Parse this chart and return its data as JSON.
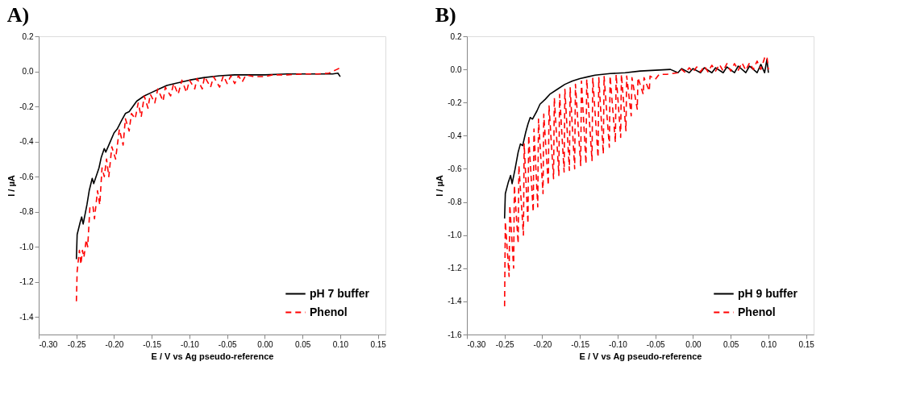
{
  "chart_data": [
    {
      "type": "line",
      "title": "A)",
      "xlabel": "E / V vs Ag pseudo-reference",
      "ylabel": "I / µA",
      "xlim": [
        -0.3,
        0.16
      ],
      "xticks": [
        {
          "value": -0.3,
          "label": "-0.30"
        },
        {
          "value": -0.25,
          "label": "-0.25"
        },
        {
          "value": -0.2,
          "label": "-0.20"
        },
        {
          "value": -0.15,
          "label": "-0.15"
        },
        {
          "value": -0.1,
          "label": "-0.10"
        },
        {
          "value": -0.05,
          "label": "-0.05"
        },
        {
          "value": 0,
          "label": "0.00"
        },
        {
          "value": 0.05,
          "label": "0.05"
        },
        {
          "value": 0.1,
          "label": "0.10"
        },
        {
          "value": 0.15,
          "label": "0.15"
        }
      ],
      "ylim": [
        -1.5,
        0.2
      ],
      "yticks": [
        {
          "value": -1.4,
          "label": "-1.4"
        },
        {
          "value": -1.2,
          "label": "-1.2"
        },
        {
          "value": -1.0,
          "label": "-1.0"
        },
        {
          "value": -0.8,
          "label": "-0.8"
        },
        {
          "value": -0.6,
          "label": "-0.6"
        },
        {
          "value": -0.4,
          "label": "-0.4"
        },
        {
          "value": -0.2,
          "label": "-0.2"
        },
        {
          "value": 0,
          "label": "0.0"
        },
        {
          "value": 0.2,
          "label": "0.2"
        }
      ],
      "legend": "bottom right",
      "series": [
        {
          "name": "pH 7 buffer",
          "color": "#000000",
          "line_style": "solid",
          "x": [
            -0.25,
            -0.249,
            -0.245,
            -0.243,
            -0.241,
            -0.236,
            -0.233,
            -0.229,
            -0.227,
            -0.22,
            -0.217,
            -0.213,
            -0.211,
            -0.205,
            -0.2,
            -0.196,
            -0.19,
            -0.185,
            -0.18,
            -0.175,
            -0.17,
            -0.16,
            -0.15,
            -0.14,
            -0.13,
            -0.12,
            -0.1,
            -0.08,
            -0.06,
            -0.04,
            -0.02,
            0,
            0.03,
            0.06,
            0.09,
            0.097,
            0.1
          ],
          "values": [
            -1.07,
            -0.93,
            -0.86,
            -0.83,
            -0.87,
            -0.76,
            -0.68,
            -0.61,
            -0.64,
            -0.55,
            -0.49,
            -0.44,
            -0.46,
            -0.4,
            -0.35,
            -0.33,
            -0.28,
            -0.24,
            -0.23,
            -0.2,
            -0.17,
            -0.14,
            -0.12,
            -0.1,
            -0.08,
            -0.07,
            -0.05,
            -0.035,
            -0.025,
            -0.02,
            -0.02,
            -0.02,
            -0.015,
            -0.015,
            -0.015,
            -0.01,
            -0.03
          ]
        },
        {
          "name": "Phenol",
          "color": "#ff0000",
          "line_style": "dashed",
          "x": [
            -0.25,
            -0.249,
            -0.246,
            -0.244,
            -0.242,
            -0.24,
            -0.237,
            -0.235,
            -0.232,
            -0.228,
            -0.226,
            -0.222,
            -0.219,
            -0.216,
            -0.213,
            -0.21,
            -0.207,
            -0.203,
            -0.198,
            -0.193,
            -0.188,
            -0.185,
            -0.18,
            -0.177,
            -0.172,
            -0.168,
            -0.164,
            -0.16,
            -0.155,
            -0.152,
            -0.146,
            -0.142,
            -0.135,
            -0.132,
            -0.125,
            -0.121,
            -0.115,
            -0.11,
            -0.104,
            -0.1,
            -0.093,
            -0.09,
            -0.083,
            -0.08,
            -0.072,
            -0.068,
            -0.06,
            -0.055,
            -0.05,
            -0.045,
            -0.04,
            -0.035,
            -0.03,
            -0.025,
            -0.015,
            0,
            0.01,
            0.03,
            0.05,
            0.07,
            0.085,
            0.095,
            0.1
          ],
          "values": [
            -1.31,
            -1.14,
            -1.02,
            -1.1,
            -1.02,
            -1.06,
            -0.96,
            -1.0,
            -0.77,
            -0.77,
            -0.84,
            -0.68,
            -0.76,
            -0.55,
            -0.6,
            -0.5,
            -0.6,
            -0.43,
            -0.5,
            -0.33,
            -0.42,
            -0.27,
            -0.34,
            -0.24,
            -0.27,
            -0.18,
            -0.26,
            -0.14,
            -0.21,
            -0.13,
            -0.18,
            -0.1,
            -0.17,
            -0.09,
            -0.14,
            -0.07,
            -0.13,
            -0.05,
            -0.12,
            -0.05,
            -0.1,
            -0.04,
            -0.1,
            -0.03,
            -0.09,
            -0.03,
            -0.09,
            -0.025,
            -0.07,
            -0.025,
            -0.07,
            -0.025,
            -0.06,
            -0.02,
            -0.03,
            -0.03,
            -0.02,
            -0.02,
            -0.015,
            -0.015,
            -0.01,
            0.01,
            0.02
          ]
        }
      ]
    },
    {
      "type": "line",
      "title": "B)",
      "xlabel": "E / V vs Ag pseudo-reference",
      "ylabel": "I / µA",
      "xlim": [
        -0.3,
        0.16
      ],
      "xticks": [
        {
          "value": -0.3,
          "label": "-0.30"
        },
        {
          "value": -0.25,
          "label": "-0.25"
        },
        {
          "value": -0.2,
          "label": "-0.20"
        },
        {
          "value": -0.15,
          "label": "-0.15"
        },
        {
          "value": -0.1,
          "label": "-0.10"
        },
        {
          "value": -0.05,
          "label": "-0.05"
        },
        {
          "value": 0,
          "label": "0.00"
        },
        {
          "value": 0.05,
          "label": "0.05"
        },
        {
          "value": 0.1,
          "label": "0.10"
        },
        {
          "value": 0.15,
          "label": "0.15"
        }
      ],
      "ylim": [
        -1.6,
        0.2
      ],
      "yticks": [
        {
          "value": -1.6,
          "label": "-1.6"
        },
        {
          "value": -1.4,
          "label": "-1.4"
        },
        {
          "value": -1.2,
          "label": "-1.2"
        },
        {
          "value": -1.0,
          "label": "-1.0"
        },
        {
          "value": -0.8,
          "label": "-0.8"
        },
        {
          "value": -0.6,
          "label": "-0.6"
        },
        {
          "value": -0.4,
          "label": "-0.4"
        },
        {
          "value": -0.2,
          "label": "-0.2"
        },
        {
          "value": 0,
          "label": "0.0"
        },
        {
          "value": 0.2,
          "label": "0.2"
        }
      ],
      "legend": "bottom right",
      "series": [
        {
          "name": "pH 9 buffer",
          "color": "#000000",
          "line_style": "solid",
          "x": [
            -0.25,
            -0.249,
            -0.245,
            -0.242,
            -0.24,
            -0.236,
            -0.232,
            -0.229,
            -0.226,
            -0.222,
            -0.219,
            -0.216,
            -0.213,
            -0.207,
            -0.203,
            -0.196,
            -0.19,
            -0.18,
            -0.17,
            -0.16,
            -0.15,
            -0.14,
            -0.13,
            -0.11,
            -0.09,
            -0.07,
            -0.05,
            -0.03,
            -0.02,
            -0.015,
            -0.005,
            0,
            0.01,
            0.015,
            0.025,
            0.03,
            0.04,
            0.045,
            0.055,
            0.06,
            0.07,
            0.075,
            0.085,
            0.09,
            0.095,
            0.098,
            0.1
          ],
          "values": [
            -0.9,
            -0.75,
            -0.68,
            -0.64,
            -0.69,
            -0.6,
            -0.5,
            -0.45,
            -0.46,
            -0.38,
            -0.33,
            -0.29,
            -0.3,
            -0.25,
            -0.21,
            -0.18,
            -0.15,
            -0.12,
            -0.09,
            -0.07,
            -0.055,
            -0.045,
            -0.035,
            -0.025,
            -0.02,
            -0.01,
            -0.005,
            0,
            -0.02,
            0.005,
            -0.02,
            0.005,
            -0.02,
            0.01,
            -0.02,
            0.01,
            -0.02,
            0.015,
            -0.02,
            0.02,
            -0.02,
            0.02,
            -0.02,
            0.03,
            -0.02,
            0.06,
            -0.02
          ]
        },
        {
          "name": "Phenol",
          "color": "#ff0000",
          "line_style": "dashed",
          "x": [
            -0.25,
            -0.249,
            -0.244,
            -0.243,
            -0.238,
            -0.237,
            -0.232,
            -0.231,
            -0.225,
            -0.224,
            -0.219,
            -0.218,
            -0.212,
            -0.211,
            -0.206,
            -0.205,
            -0.199,
            -0.198,
            -0.192,
            -0.191,
            -0.185,
            -0.184,
            -0.178,
            -0.177,
            -0.171,
            -0.17,
            -0.164,
            -0.163,
            -0.157,
            -0.156,
            -0.149,
            -0.148,
            -0.142,
            -0.141,
            -0.134,
            -0.133,
            -0.126,
            -0.125,
            -0.119,
            -0.118,
            -0.111,
            -0.11,
            -0.103,
            -0.102,
            -0.096,
            -0.095,
            -0.089,
            -0.088,
            -0.082,
            -0.081,
            -0.074,
            -0.073,
            -0.066,
            -0.065,
            -0.058,
            -0.057,
            -0.05,
            -0.045,
            -0.035,
            -0.02,
            -0.015,
            -0.01,
            -0.005,
            0,
            0.005,
            0.01,
            0.015,
            0.02,
            0.025,
            0.03,
            0.035,
            0.04,
            0.045,
            0.05,
            0.055,
            0.06,
            0.065,
            0.07,
            0.075,
            0.08,
            0.085,
            0.09,
            0.095,
            0.098,
            0.1
          ],
          "values": [
            -1.43,
            -0.92,
            -1.25,
            -0.82,
            -1.2,
            -0.7,
            -1.05,
            -0.58,
            -1.0,
            -0.45,
            -0.93,
            -0.4,
            -0.86,
            -0.36,
            -0.83,
            -0.3,
            -0.75,
            -0.27,
            -0.7,
            -0.22,
            -0.66,
            -0.17,
            -0.64,
            -0.15,
            -0.62,
            -0.12,
            -0.61,
            -0.11,
            -0.6,
            -0.09,
            -0.58,
            -0.07,
            -0.57,
            -0.06,
            -0.55,
            -0.05,
            -0.53,
            -0.05,
            -0.51,
            -0.04,
            -0.47,
            -0.04,
            -0.44,
            -0.03,
            -0.41,
            -0.03,
            -0.37,
            -0.04,
            -0.28,
            -0.05,
            -0.24,
            -0.05,
            -0.15,
            -0.05,
            -0.13,
            -0.04,
            -0.06,
            -0.03,
            -0.03,
            -0.02,
            0.0,
            -0.02,
            0.01,
            -0.015,
            0.015,
            -0.015,
            0.02,
            -0.015,
            0.025,
            -0.01,
            0.03,
            -0.01,
            0.035,
            -0.01,
            0.035,
            -0.005,
            0.04,
            -0.005,
            0.04,
            0.0,
            0.05,
            0.0,
            0.07,
            0.08,
            0.0
          ]
        }
      ]
    }
  ]
}
